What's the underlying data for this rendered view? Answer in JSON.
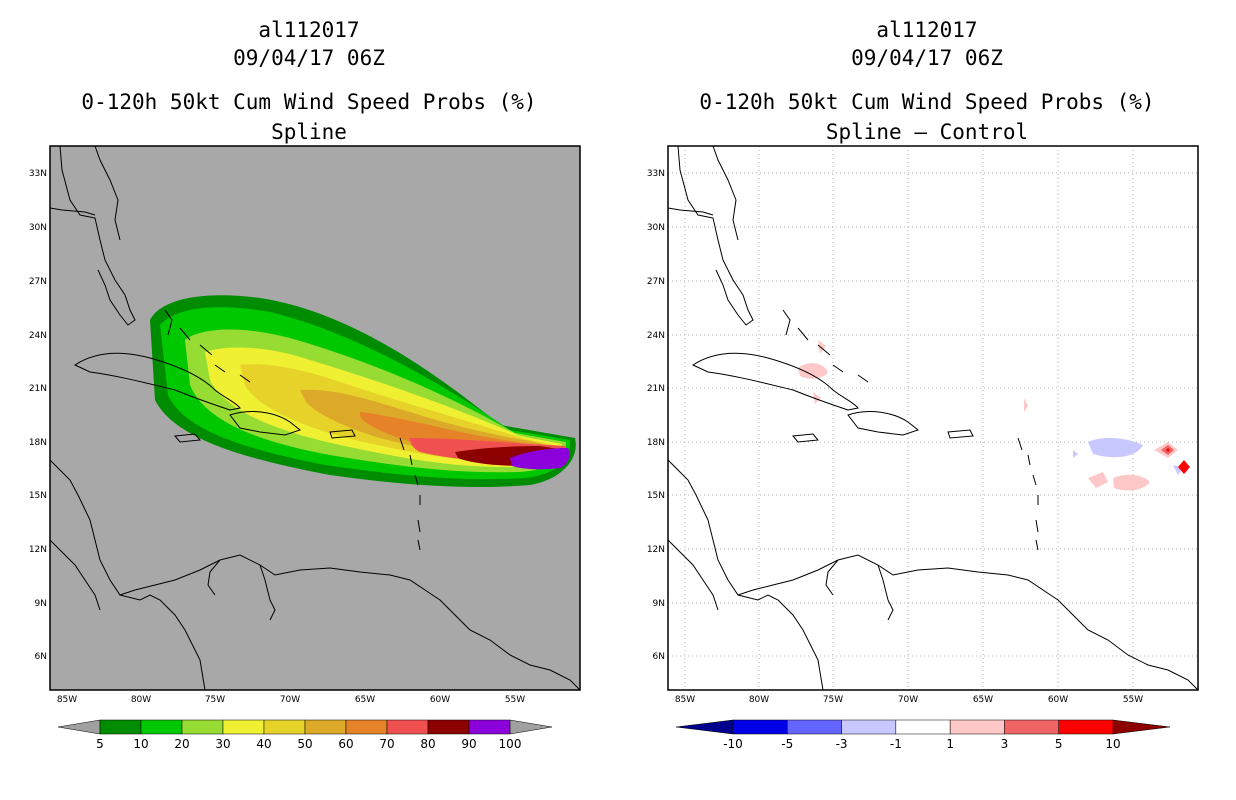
{
  "panels": [
    {
      "storm_id": "al112017",
      "datetime": "09/04/17 06Z",
      "product": "0-120h 50kt Cum Wind Speed Probs (%)",
      "subtitle": "Spline",
      "colorbar": {
        "labels": [
          "5",
          "10",
          "20",
          "30",
          "40",
          "50",
          "60",
          "70",
          "80",
          "90",
          "100"
        ],
        "colors": [
          "#008c00",
          "#00c800",
          "#96dc32",
          "#f0f032",
          "#e6d228",
          "#dcaa28",
          "#e68228",
          "#f05050",
          "#8c0000",
          "#8c00dc"
        ],
        "end_color": "#a0a0a0"
      }
    },
    {
      "storm_id": "al112017",
      "datetime": "09/04/17 06Z",
      "product": "0-120h 50kt Cum Wind Speed Probs (%)",
      "subtitle": "Spline – Control",
      "colorbar": {
        "labels": [
          "-10",
          "-5",
          "-3",
          "-1",
          "1",
          "3",
          "5",
          "10"
        ],
        "colors": [
          "#0000e6",
          "#6464ff",
          "#c8c8ff",
          "#ffffff",
          "#ffc8c8",
          "#f06464",
          "#ff0000"
        ],
        "low_color": "#00008c",
        "high_color": "#8c0000"
      }
    }
  ],
  "map": {
    "lat_labels": [
      "33N",
      "30N",
      "27N",
      "24N",
      "21N",
      "18N",
      "15N",
      "12N",
      "9N",
      "6N"
    ],
    "lon_labels": [
      "85W",
      "80W",
      "75W",
      "70W",
      "65W",
      "60W",
      "55W"
    ]
  }
}
